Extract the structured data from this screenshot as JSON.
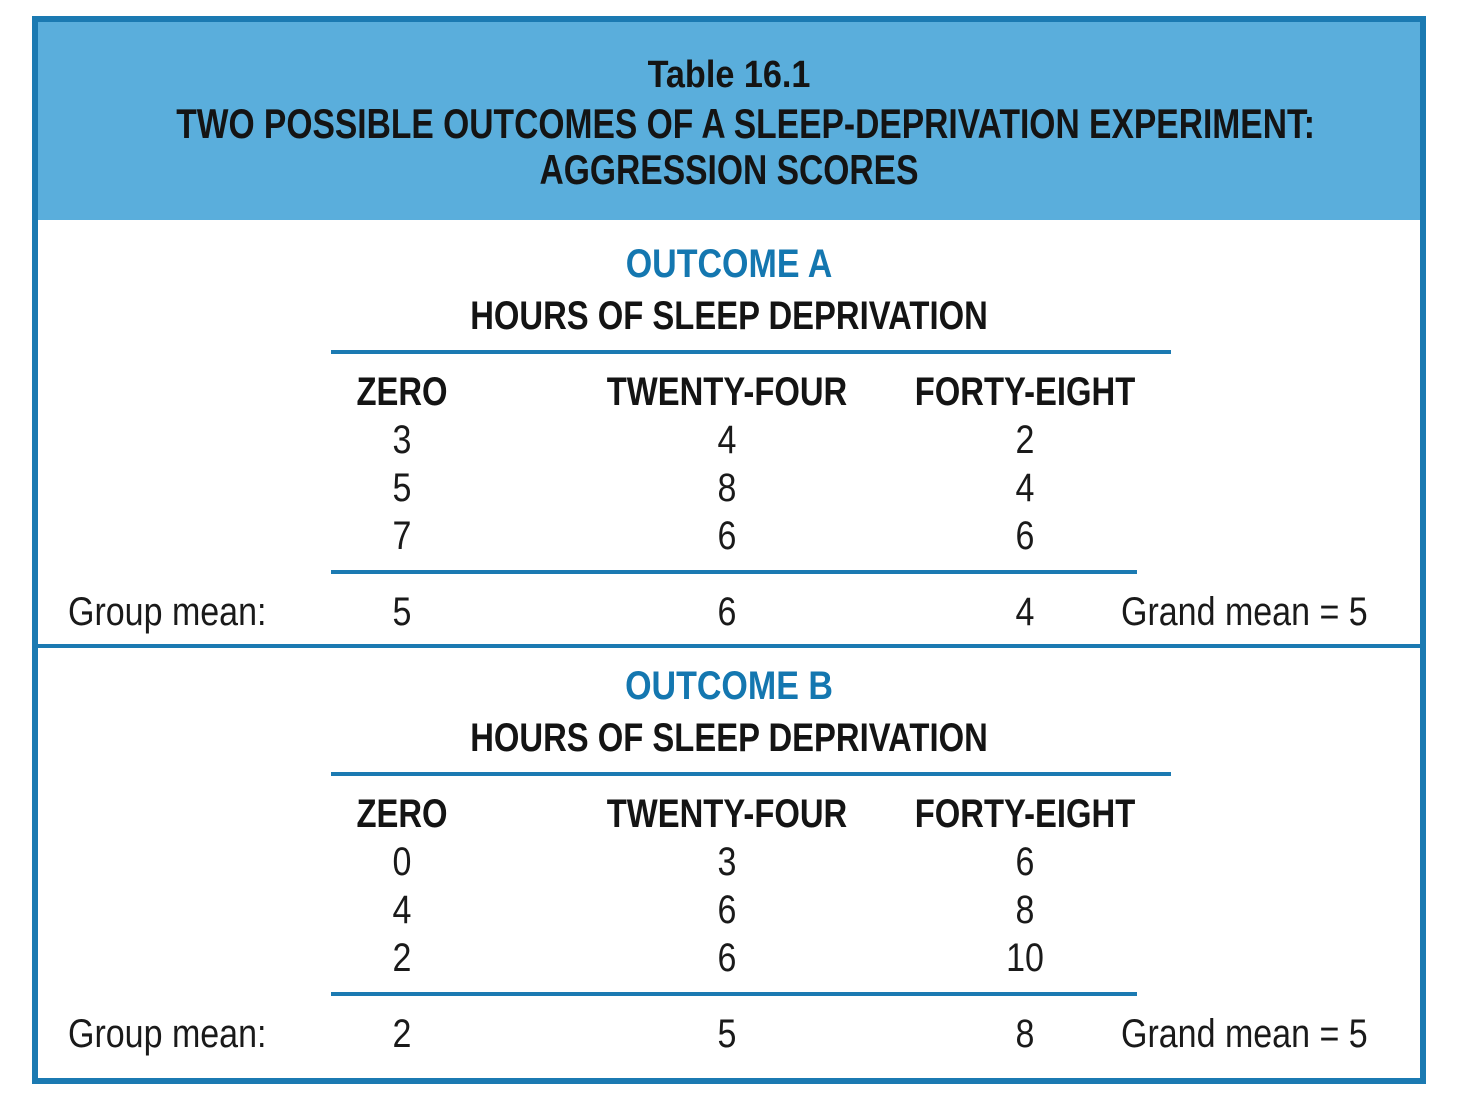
{
  "table": {
    "number": "Table 16.1",
    "title_line1": "TWO POSSIBLE OUTCOMES OF A SLEEP-DEPRIVATION EXPERIMENT:",
    "title_line2": "AGGRESSION SCORES"
  },
  "outcomes": [
    {
      "title": "OUTCOME A",
      "subtitle": "HOURS OF SLEEP DEPRIVATION",
      "columns": [
        "ZERO",
        "TWENTY-FOUR",
        "FORTY-EIGHT"
      ],
      "rows": [
        [
          "3",
          "4",
          "2"
        ],
        [
          "5",
          "8",
          "4"
        ],
        [
          "7",
          "6",
          "6"
        ]
      ],
      "group_mean_label": "Group mean:",
      "group_means": [
        "5",
        "6",
        "4"
      ],
      "grand_mean": "Grand mean = 5"
    },
    {
      "title": "OUTCOME B",
      "subtitle": "HOURS OF SLEEP DEPRIVATION",
      "columns": [
        "ZERO",
        "TWENTY-FOUR",
        "FORTY-EIGHT"
      ],
      "rows": [
        [
          "0",
          "3",
          "6"
        ],
        [
          "4",
          "6",
          "8"
        ],
        [
          "2",
          "6",
          "10"
        ]
      ],
      "group_mean_label": "Group mean:",
      "group_means": [
        "2",
        "5",
        "8"
      ],
      "grand_mean": "Grand mean = 5"
    }
  ],
  "colors": {
    "border": "#1b7ab2",
    "header_bg": "#5aaedc",
    "outcome_title": "#1477b0"
  }
}
